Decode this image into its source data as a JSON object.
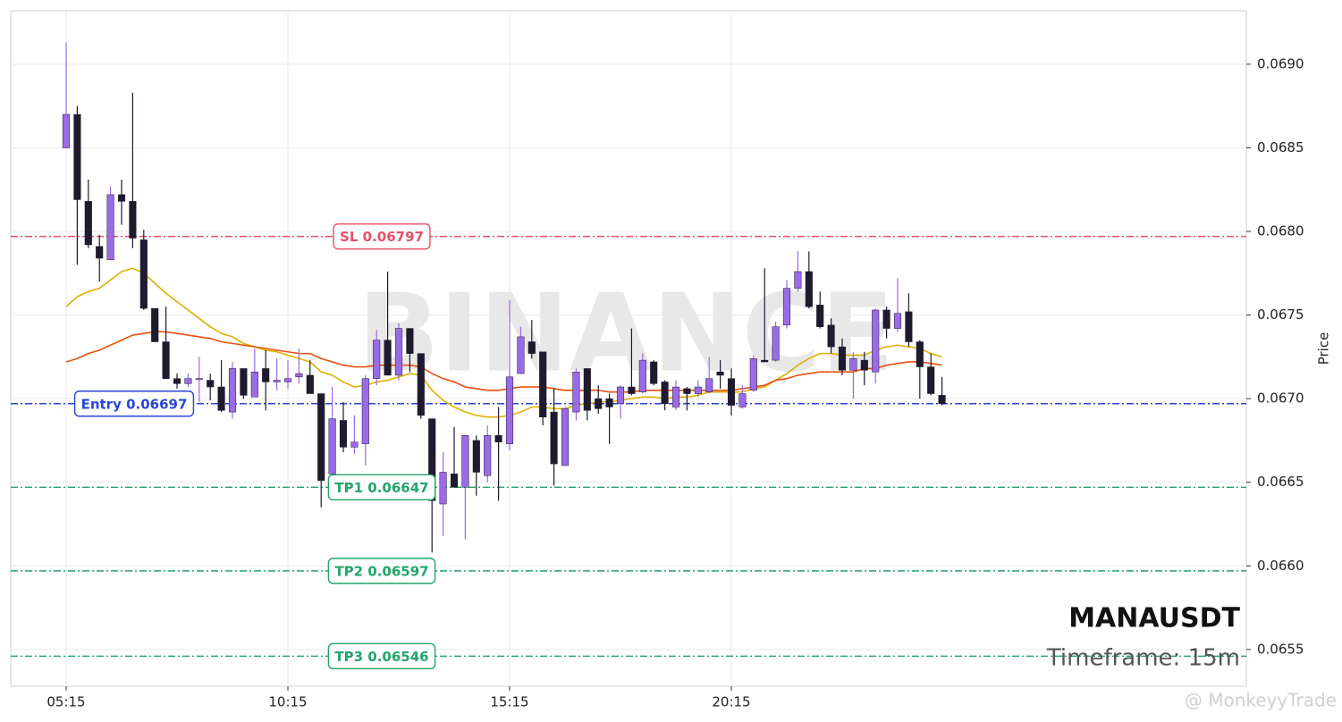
{
  "chart_data": {
    "type": "candlestick",
    "watermark": "BINANCE",
    "symbol": "MANAUSDT",
    "subtitle": "Timeframe: 15m",
    "ylabel": "Price",
    "credit": "@ MonkeyyTrade",
    "up_color": "#9b6ae6",
    "down_color": "#1f1a2e",
    "grid": true,
    "ylim": [
      0.06528,
      0.06932
    ],
    "yticks": [
      0.0655,
      {
        "value": 0.066,
        "label": "0.0660"
      },
      0.0665,
      {
        "value": 0.067,
        "label": "0.0670"
      },
      0.0675,
      {
        "value": 0.068,
        "label": "0.0680"
      },
      0.0685,
      {
        "value": 0.069,
        "label": "0.0690"
      }
    ],
    "categories": [
      "05:15",
      null,
      null,
      null,
      null,
      null,
      null,
      null,
      null,
      null,
      null,
      null,
      null,
      null,
      null,
      null,
      null,
      null,
      null,
      null,
      "10:15",
      null,
      null,
      null,
      null,
      null,
      null,
      null,
      null,
      null,
      null,
      null,
      null,
      null,
      null,
      null,
      null,
      null,
      null,
      null,
      "15:15",
      null,
      null,
      null,
      null,
      null,
      null,
      null,
      null,
      null,
      null,
      null,
      null,
      null,
      null,
      null,
      null,
      null,
      null,
      null,
      "20:15",
      null,
      null,
      null,
      null,
      null,
      null,
      null,
      null,
      null,
      null,
      null,
      null,
      null,
      null,
      null,
      null,
      null,
      null,
      null
    ],
    "open": [
      0.0685,
      0.0687,
      0.06818,
      0.06791,
      0.06783,
      0.06822,
      0.06818,
      0.06795,
      0.06754,
      0.06734,
      0.06712,
      0.06709,
      0.06712,
      0.06711,
      0.06707,
      0.06692,
      0.06718,
      0.06701,
      0.06718,
      0.0671,
      0.0671,
      0.06713,
      0.06714,
      0.06703,
      0.06655,
      0.06687,
      0.06671,
      0.06673,
      0.06712,
      0.06735,
      0.06714,
      0.06742,
      0.06727,
      0.06688,
      0.06637,
      0.06655,
      0.06647,
      0.06675,
      0.06654,
      0.06678,
      0.06673,
      0.06715,
      0.06734,
      0.06728,
      0.06692,
      0.0666,
      0.06692,
      0.06718,
      0.067,
      0.067,
      0.06697,
      0.06707,
      0.06704,
      0.06722,
      0.0671,
      0.06695,
      0.06706,
      0.06703,
      0.06704,
      0.06716,
      0.06712,
      0.06695,
      0.06705,
      0.06723,
      0.06723,
      0.06744,
      0.06766,
      0.06776,
      0.06756,
      0.06744,
      0.06731,
      0.06717,
      0.06723,
      0.06716,
      0.06753,
      0.06742,
      0.06752,
      0.06734,
      0.06719,
      0.06702
    ],
    "high": [
      0.06913,
      0.06875,
      0.06831,
      0.06798,
      0.06827,
      0.06831,
      0.06883,
      0.06801,
      0.06754,
      0.06755,
      0.06715,
      0.06715,
      0.06725,
      0.06715,
      0.06723,
      0.06722,
      0.06718,
      0.0673,
      0.06729,
      0.06724,
      0.06723,
      0.0673,
      0.06723,
      0.06703,
      0.06707,
      0.06698,
      0.0669,
      0.06714,
      0.06741,
      0.06776,
      0.06745,
      0.06742,
      0.06727,
      0.06688,
      0.06668,
      0.06683,
      0.06678,
      0.06678,
      0.06684,
      0.06695,
      0.06759,
      0.06743,
      0.06747,
      0.06728,
      0.06706,
      0.06695,
      0.06718,
      0.06718,
      0.06708,
      0.06703,
      0.06708,
      0.06742,
      0.06727,
      0.06723,
      0.06711,
      0.06711,
      0.06707,
      0.06711,
      0.06725,
      0.06723,
      0.06718,
      0.06708,
      0.06726,
      0.06778,
      0.06746,
      0.06771,
      0.06788,
      0.06788,
      0.06764,
      0.06748,
      0.06736,
      0.06728,
      0.06728,
      0.06754,
      0.06755,
      0.06772,
      0.06763,
      0.06735,
      0.06727,
      0.06713
    ],
    "low": [
      0.0685,
      0.0678,
      0.0679,
      0.0677,
      0.06783,
      0.06804,
      0.0679,
      0.06753,
      0.06734,
      0.06712,
      0.06706,
      0.06707,
      0.06698,
      0.06699,
      0.06692,
      0.06688,
      0.067,
      0.06701,
      0.06693,
      0.06705,
      0.06706,
      0.06709,
      0.06703,
      0.06635,
      0.0665,
      0.06668,
      0.06667,
      0.0666,
      0.06708,
      0.06714,
      0.06711,
      0.06716,
      0.06688,
      0.06608,
      0.06618,
      0.06647,
      0.06616,
      0.06642,
      0.0665,
      0.06639,
      0.06669,
      0.06715,
      0.06724,
      0.06684,
      0.06648,
      0.0666,
      0.06687,
      0.06687,
      0.06691,
      0.06673,
      0.06688,
      0.06702,
      0.06703,
      0.06708,
      0.06693,
      0.06693,
      0.06693,
      0.06701,
      0.06703,
      0.06706,
      0.0669,
      0.06694,
      0.06704,
      0.06722,
      0.06722,
      0.06742,
      0.06764,
      0.06754,
      0.06742,
      0.06727,
      0.06714,
      0.067,
      0.06708,
      0.06709,
      0.06736,
      0.0674,
      0.06731,
      0.067,
      0.06702,
      0.06696
    ],
    "close": [
      0.0687,
      0.06819,
      0.06792,
      0.06784,
      0.06822,
      0.06818,
      0.06796,
      0.06754,
      0.06734,
      0.06712,
      0.06709,
      0.06712,
      0.06712,
      0.06707,
      0.06693,
      0.06718,
      0.06702,
      0.06716,
      0.0671,
      0.06711,
      0.06712,
      0.06715,
      0.06703,
      0.06651,
      0.06688,
      0.06671,
      0.06674,
      0.06712,
      0.06735,
      0.06714,
      0.06742,
      0.06727,
      0.0669,
      0.06639,
      0.06656,
      0.06647,
      0.06678,
      0.06656,
      0.06678,
      0.06674,
      0.06713,
      0.06737,
      0.06727,
      0.06689,
      0.06661,
      0.06694,
      0.06716,
      0.06693,
      0.06694,
      0.06695,
      0.06707,
      0.06703,
      0.06723,
      0.06709,
      0.06697,
      0.06707,
      0.06703,
      0.06707,
      0.06712,
      0.06714,
      0.06696,
      0.06703,
      0.06724,
      0.06722,
      0.06743,
      0.06766,
      0.06776,
      0.06755,
      0.06743,
      0.06731,
      0.06717,
      0.06724,
      0.06717,
      0.06753,
      0.06742,
      0.06751,
      0.06734,
      0.06719,
      0.06703,
      0.06697
    ],
    "lines": [
      {
        "color": "#ddb000",
        "values": [
          0.06755,
          0.06761,
          0.06764,
          0.06766,
          0.06771,
          0.06776,
          0.06778,
          0.06775,
          0.06769,
          0.06763,
          0.06758,
          0.06753,
          0.06748,
          0.06743,
          0.06739,
          0.06737,
          0.06733,
          0.06731,
          0.06729,
          0.06728,
          0.06726,
          0.06724,
          0.06722,
          0.06716,
          0.06714,
          0.0671,
          0.06707,
          0.06708,
          0.0671,
          0.06711,
          0.06713,
          0.06715,
          0.06714,
          0.06705,
          0.06699,
          0.06695,
          0.06692,
          0.0669,
          0.06689,
          0.06689,
          0.0669,
          0.06692,
          0.06695,
          0.06695,
          0.06694,
          0.06694,
          0.06696,
          0.06697,
          0.06698,
          0.06698,
          0.06699,
          0.067,
          0.06701,
          0.06701,
          0.067,
          0.06701,
          0.06701,
          0.06702,
          0.06704,
          0.06704,
          0.06704,
          0.06704,
          0.06706,
          0.06707,
          0.06711,
          0.06715,
          0.0672,
          0.06724,
          0.06727,
          0.06727,
          0.06726,
          0.06726,
          0.06726,
          0.06729,
          0.06731,
          0.06732,
          0.06731,
          0.0673,
          0.06727,
          0.06725
        ]
      },
      {
        "color": "#e8500f",
        "values": [
          0.06722,
          0.06724,
          0.06727,
          0.06729,
          0.06732,
          0.06735,
          0.06738,
          0.06739,
          0.0674,
          0.0674,
          0.06739,
          0.06738,
          0.06737,
          0.06736,
          0.06734,
          0.06733,
          0.06732,
          0.06731,
          0.0673,
          0.06729,
          0.06728,
          0.06727,
          0.06727,
          0.06724,
          0.06722,
          0.0672,
          0.06719,
          0.06719,
          0.0672,
          0.0672,
          0.0672,
          0.0672,
          0.06719,
          0.06715,
          0.06712,
          0.0671,
          0.06707,
          0.06706,
          0.06705,
          0.06705,
          0.06706,
          0.06707,
          0.06707,
          0.06707,
          0.06706,
          0.06705,
          0.06705,
          0.06705,
          0.06705,
          0.06704,
          0.06704,
          0.06704,
          0.06705,
          0.06705,
          0.06705,
          0.06705,
          0.06705,
          0.06705,
          0.06705,
          0.06705,
          0.06705,
          0.06706,
          0.06707,
          0.06708,
          0.06711,
          0.06712,
          0.06714,
          0.06715,
          0.06716,
          0.06716,
          0.06716,
          0.06716,
          0.06718,
          0.06718,
          0.0672,
          0.06721,
          0.06722,
          0.06722,
          0.06721,
          0.0672
        ]
      }
    ],
    "levels": [
      {
        "label": "SL 0.06797",
        "value": 0.06797,
        "color": "#e5506a"
      },
      {
        "label": "Entry 0.06697",
        "value": 0.06697,
        "color": "#2a46d8"
      },
      {
        "label": "TP1 0.06647",
        "value": 0.06647,
        "color": "#22a56a"
      },
      {
        "label": "TP2 0.06597",
        "value": 0.06597,
        "color": "#22a56a"
      },
      {
        "label": "TP3 0.06546",
        "value": 0.06546,
        "color": "#22a56a"
      }
    ]
  }
}
